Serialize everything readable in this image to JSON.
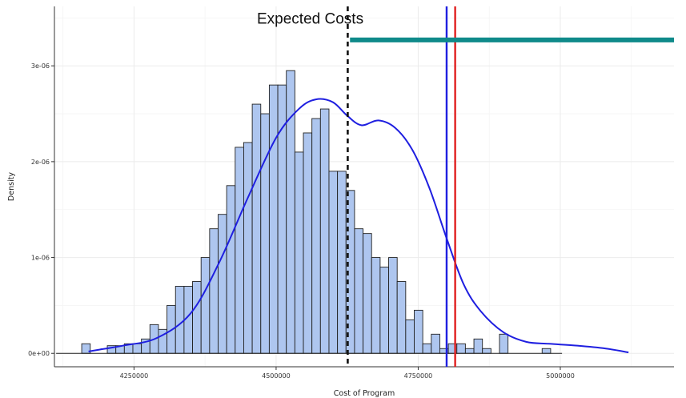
{
  "chart_data": {
    "type": "histogram",
    "title": "",
    "xlabel": "Cost of Program",
    "ylabel": "Density",
    "xlim": [
      4110000,
      5200000
    ],
    "ylim": [
      -1.4e-07,
      3.62e-06
    ],
    "grid": true,
    "x_ticks": [
      {
        "value": 4250000,
        "label": "4250000"
      },
      {
        "value": 4500000,
        "label": "4500000"
      },
      {
        "value": 4750000,
        "label": "4750000"
      },
      {
        "value": 5000000,
        "label": "5000000"
      }
    ],
    "y_ticks": [
      {
        "value": 0,
        "label": "0e+00"
      },
      {
        "value": 1e-06,
        "label": "1e-06"
      },
      {
        "value": 2e-06,
        "label": "2e-06"
      },
      {
        "value": 3e-06,
        "label": "3e-06"
      }
    ],
    "bin_width": 15000,
    "bin_start": 4158000,
    "bin_densities_e6": [
      0.1,
      0,
      0,
      0.08,
      0.08,
      0.1,
      0.1,
      0.15,
      0.3,
      0.25,
      0.5,
      0.7,
      0.7,
      0.75,
      1.0,
      1.3,
      1.45,
      1.75,
      2.15,
      2.2,
      2.6,
      2.5,
      2.8,
      2.8,
      2.95,
      2.1,
      2.3,
      2.45,
      2.55,
      1.9,
      1.9,
      1.7,
      1.3,
      1.25,
      1.0,
      0.9,
      1.0,
      0.75,
      0.35,
      0.45,
      0.1,
      0.2,
      0.05,
      0.1,
      0.1,
      0.05,
      0.15,
      0.05,
      0,
      0.2,
      0,
      0,
      0,
      0,
      0.05
    ],
    "density_curve": {
      "color": "#1f1fe0",
      "x": [
        4170000,
        4190000,
        4230000,
        4290000,
        4350000,
        4400000,
        4450000,
        4500000,
        4540000,
        4570000,
        4600000,
        4625000,
        4650000,
        4680000,
        4710000,
        4740000,
        4770000,
        4800000,
        4830000,
        4860000,
        4900000,
        4940000,
        4980000,
        5030000,
        5080000,
        5120000
      ],
      "y_e6": [
        0.02,
        0.04,
        0.08,
        0.16,
        0.42,
        0.95,
        1.62,
        2.25,
        2.55,
        2.65,
        2.62,
        2.48,
        2.38,
        2.43,
        2.35,
        2.12,
        1.72,
        1.2,
        0.72,
        0.44,
        0.22,
        0.12,
        0.1,
        0.08,
        0.05,
        0.01
      ]
    },
    "reference_lines": [
      {
        "name": "expected",
        "x": 4626000,
        "color": "#111111",
        "style": "dashed"
      },
      {
        "name": "blue",
        "x": 4800000,
        "color": "#1f1fe0",
        "style": "solid"
      },
      {
        "name": "red",
        "x": 4815000,
        "color": "#e01f1f",
        "style": "solid"
      }
    ],
    "annotation": {
      "text": "Expected Costs",
      "x": 4560000,
      "y_e6": 3.5
    },
    "range_bar": {
      "x_start": 4630000,
      "x_end": 5200000,
      "y_e6": 3.27,
      "color": "#0f8a8a"
    },
    "colors": {
      "bar_fill": "#aec6ef",
      "bar_stroke": "#222222",
      "axis": "#333333",
      "grid": "#ebebeb"
    }
  }
}
